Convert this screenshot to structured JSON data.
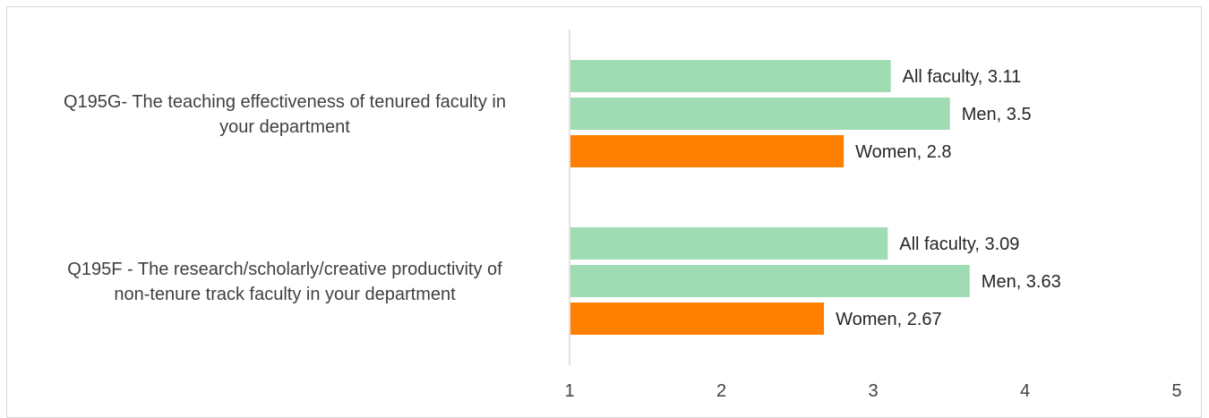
{
  "chart_data": {
    "type": "bar",
    "orientation": "horizontal",
    "title": "",
    "xlabel": "",
    "ylabel": "",
    "xlim": [
      1,
      5
    ],
    "x_ticks": [
      "1",
      "2",
      "3",
      "4",
      "5"
    ],
    "grid": false,
    "legend": "none",
    "colors": {
      "All faculty": "#9fdcb3",
      "Men": "#9fdcb3",
      "Women": "#ff8000"
    },
    "categories": [
      {
        "label_lines": [
          "Q195G- The teaching effectiveness of tenured faculty in",
          "your department"
        ],
        "bars": [
          {
            "series": "All faculty",
            "value": 3.11,
            "label": "All faculty, 3.11"
          },
          {
            "series": "Men",
            "value": 3.5,
            "label": "Men, 3.5"
          },
          {
            "series": "Women",
            "value": 2.8,
            "label": "Women, 2.8"
          }
        ]
      },
      {
        "label_lines": [
          "Q195F - The research/scholarly/creative productivity  of",
          "non-tenure track faculty in your department"
        ],
        "bars": [
          {
            "series": "All faculty",
            "value": 3.09,
            "label": "All faculty, 3.09"
          },
          {
            "series": "Men",
            "value": 3.63,
            "label": "Men, 3.63"
          },
          {
            "series": "Women",
            "value": 2.67,
            "label": "Women, 2.67"
          }
        ]
      }
    ]
  }
}
